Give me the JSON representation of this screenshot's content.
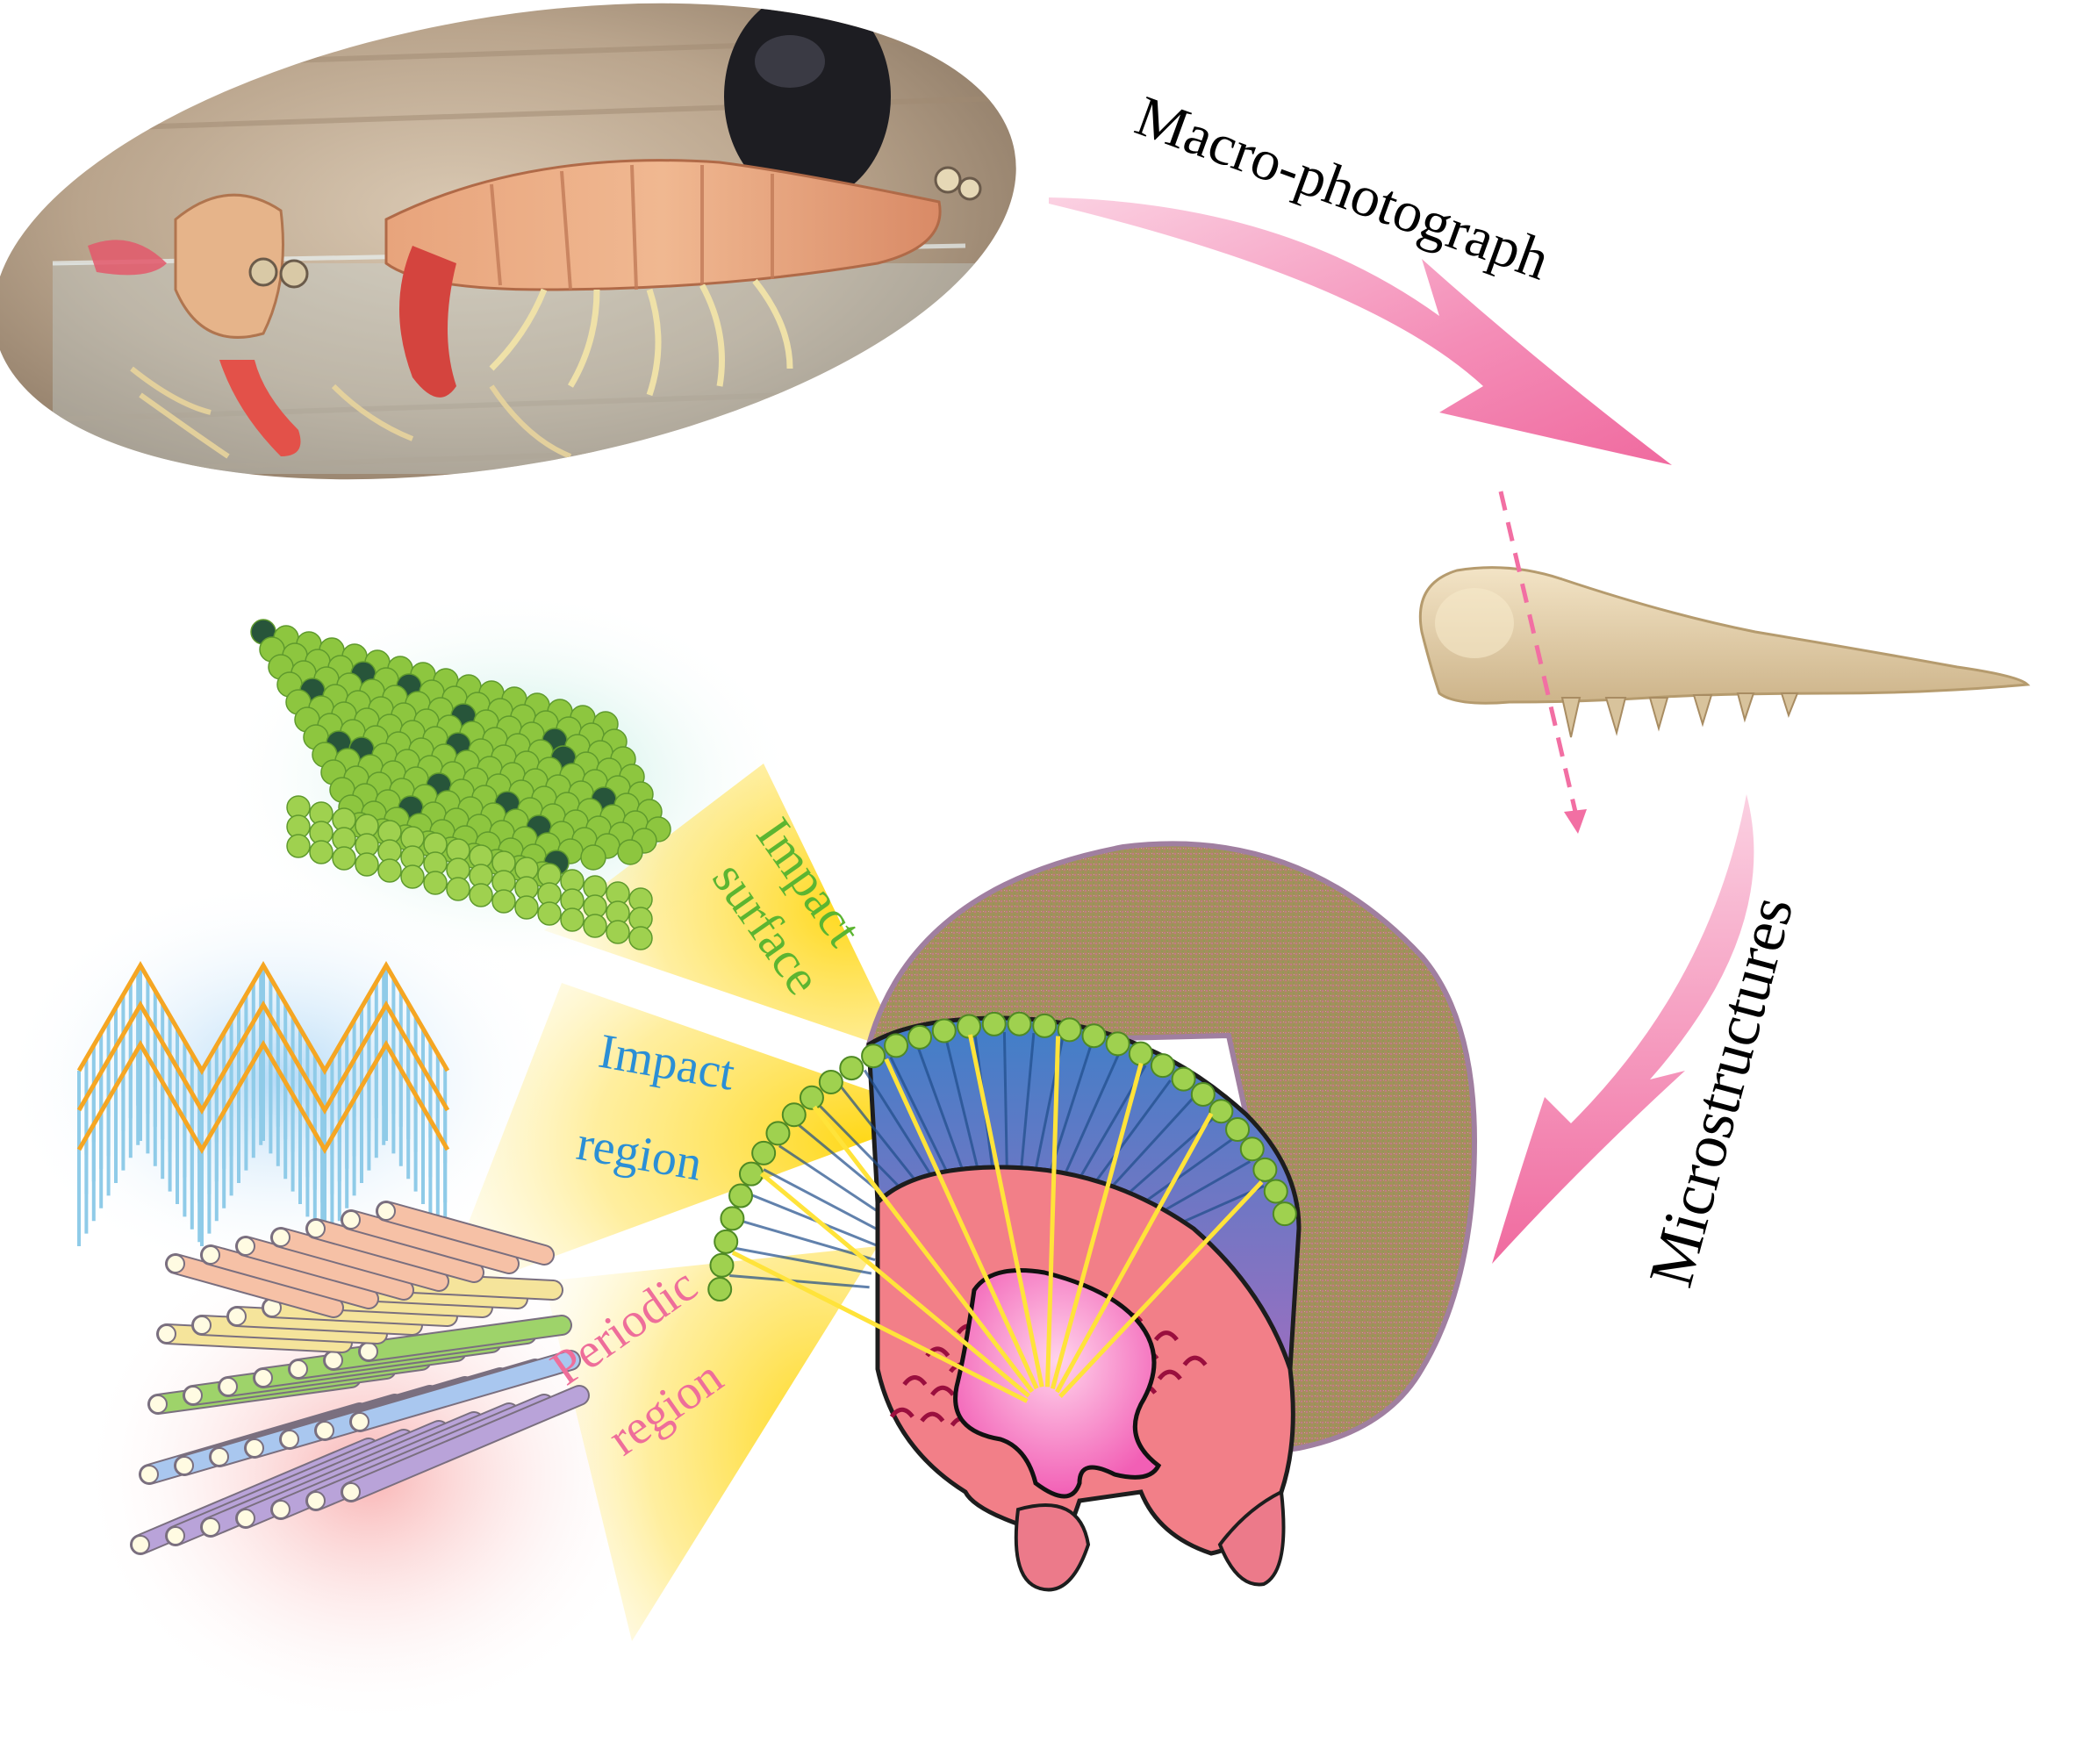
{
  "labels": {
    "macro_photograph": "Macro-photograph",
    "microstructures": "Microstructures",
    "impact_surface_line1": "Impact",
    "impact_surface_line2": "surface",
    "impact_region_line1": "Impact",
    "impact_region_line2": "region",
    "periodic_region_line1": "Periodic",
    "periodic_region_line2": "region"
  },
  "colors": {
    "arrow_pink": "#f26fa3",
    "impact_surface_text": "#5cb531",
    "impact_region_text": "#2b8fd6",
    "periodic_region_text": "#ee6e9a",
    "beam_yellow": "#ffe15a",
    "fiber_blue": "#8fcbe8",
    "zigzag_orange": "#f5a623",
    "sphere_green": "#8dc63f",
    "club_shell": "#a88c5a"
  },
  "icons": {
    "photo": "mantis-shrimp-photo",
    "appendage": "dactyl-club-appendage",
    "cross_section": "club-cross-section",
    "surface_model": "sphere-lattice-icon",
    "region_model": "zigzag-fiber-icon",
    "periodic_model": "bouligand-rod-icon"
  }
}
